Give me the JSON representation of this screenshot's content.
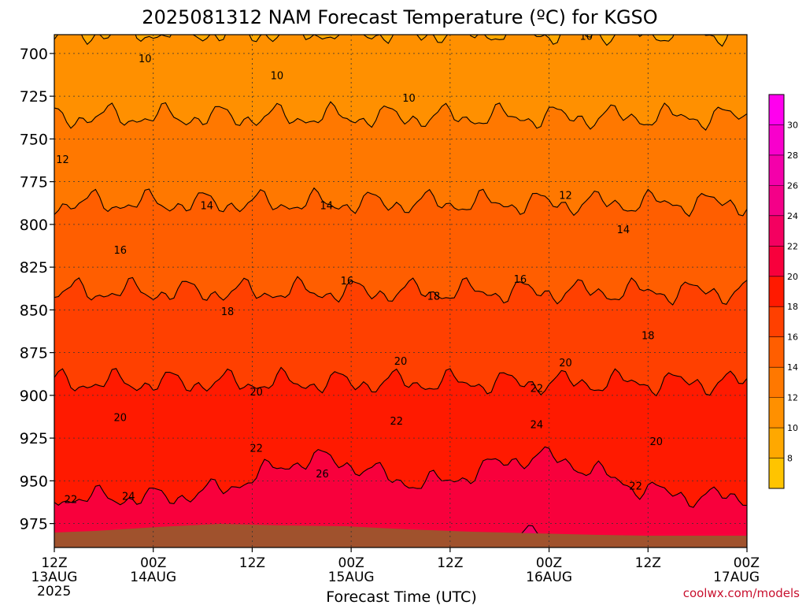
{
  "chart_data": {
    "type": "heatmap",
    "title": "2025081312 NAM Forecast Temperature (ºC) for KGSO",
    "xlabel": "Forecast Time (UTC)",
    "ylabel": "",
    "credit": "coolwx.com/models",
    "x_unit": "forecast hour",
    "xlim": [
      0,
      84
    ],
    "x_ticks": [
      {
        "value": 0,
        "label": "12Z",
        "sub": "13AUG",
        "year": "2025"
      },
      {
        "value": 12,
        "label": "00Z",
        "sub": "14AUG",
        "year": ""
      },
      {
        "value": 24,
        "label": "12Z",
        "sub": "",
        "year": ""
      },
      {
        "value": 36,
        "label": "00Z",
        "sub": "15AUG",
        "year": ""
      },
      {
        "value": 48,
        "label": "12Z",
        "sub": "",
        "year": ""
      },
      {
        "value": 60,
        "label": "00Z",
        "sub": "16AUG",
        "year": ""
      },
      {
        "value": 72,
        "label": "12Z",
        "sub": "",
        "year": ""
      },
      {
        "value": 84,
        "label": "00Z",
        "sub": "17AUG",
        "year": ""
      }
    ],
    "y_unit": "hPa",
    "ylim": [
      989,
      689
    ],
    "y_ticks": [
      700,
      725,
      750,
      775,
      800,
      825,
      850,
      875,
      900,
      925,
      950,
      975
    ],
    "grid": true,
    "colorbar": {
      "placement": "right",
      "levels": [
        6,
        8,
        10,
        12,
        14,
        16,
        18,
        20,
        22,
        24,
        26,
        28,
        30,
        32
      ],
      "labels": [
        "8",
        "10",
        "12",
        "14",
        "16",
        "18",
        "20",
        "22",
        "24",
        "26",
        "28",
        "30"
      ],
      "colors": [
        "#ffc400",
        "#ffa800",
        "#ff9000",
        "#ff7800",
        "#ff5e00",
        "#ff4000",
        "#ff1a00",
        "#f8003c",
        "#f40060",
        "#f40088",
        "#f400aa",
        "#f800cc",
        "#ff00ee"
      ]
    },
    "contour_labels": [
      {
        "x": 11,
        "p": 703,
        "text": "10"
      },
      {
        "x": 27,
        "p": 713,
        "text": "10"
      },
      {
        "x": 43,
        "p": 726,
        "text": "10"
      },
      {
        "x": 64.5,
        "p": 690,
        "text": "10"
      },
      {
        "x": 1,
        "p": 762,
        "text": "12"
      },
      {
        "x": 62,
        "p": 783,
        "text": "12"
      },
      {
        "x": 18.5,
        "p": 789,
        "text": "14"
      },
      {
        "x": 33,
        "p": 789,
        "text": "14"
      },
      {
        "x": 69,
        "p": 803,
        "text": "14"
      },
      {
        "x": 8,
        "p": 815,
        "text": "16"
      },
      {
        "x": 35.5,
        "p": 833,
        "text": "16"
      },
      {
        "x": 56.5,
        "p": 832,
        "text": "16"
      },
      {
        "x": 21,
        "p": 851,
        "text": "18"
      },
      {
        "x": 46,
        "p": 842,
        "text": "18"
      },
      {
        "x": 72,
        "p": 865,
        "text": "18"
      },
      {
        "x": 42,
        "p": 880,
        "text": "20"
      },
      {
        "x": 62,
        "p": 881,
        "text": "20"
      },
      {
        "x": 24.5,
        "p": 898,
        "text": "20"
      },
      {
        "x": 8,
        "p": 913,
        "text": "20"
      },
      {
        "x": 73,
        "p": 927,
        "text": "20"
      },
      {
        "x": 41.5,
        "p": 915,
        "text": "22"
      },
      {
        "x": 58.5,
        "p": 896,
        "text": "22"
      },
      {
        "x": 24.5,
        "p": 931,
        "text": "22"
      },
      {
        "x": 2,
        "p": 961,
        "text": "22"
      },
      {
        "x": 70.5,
        "p": 953,
        "text": "22"
      },
      {
        "x": 58.5,
        "p": 917,
        "text": "24"
      },
      {
        "x": 9,
        "p": 959,
        "text": "24"
      },
      {
        "x": 32.5,
        "p": 946,
        "text": "26"
      }
    ]
  }
}
